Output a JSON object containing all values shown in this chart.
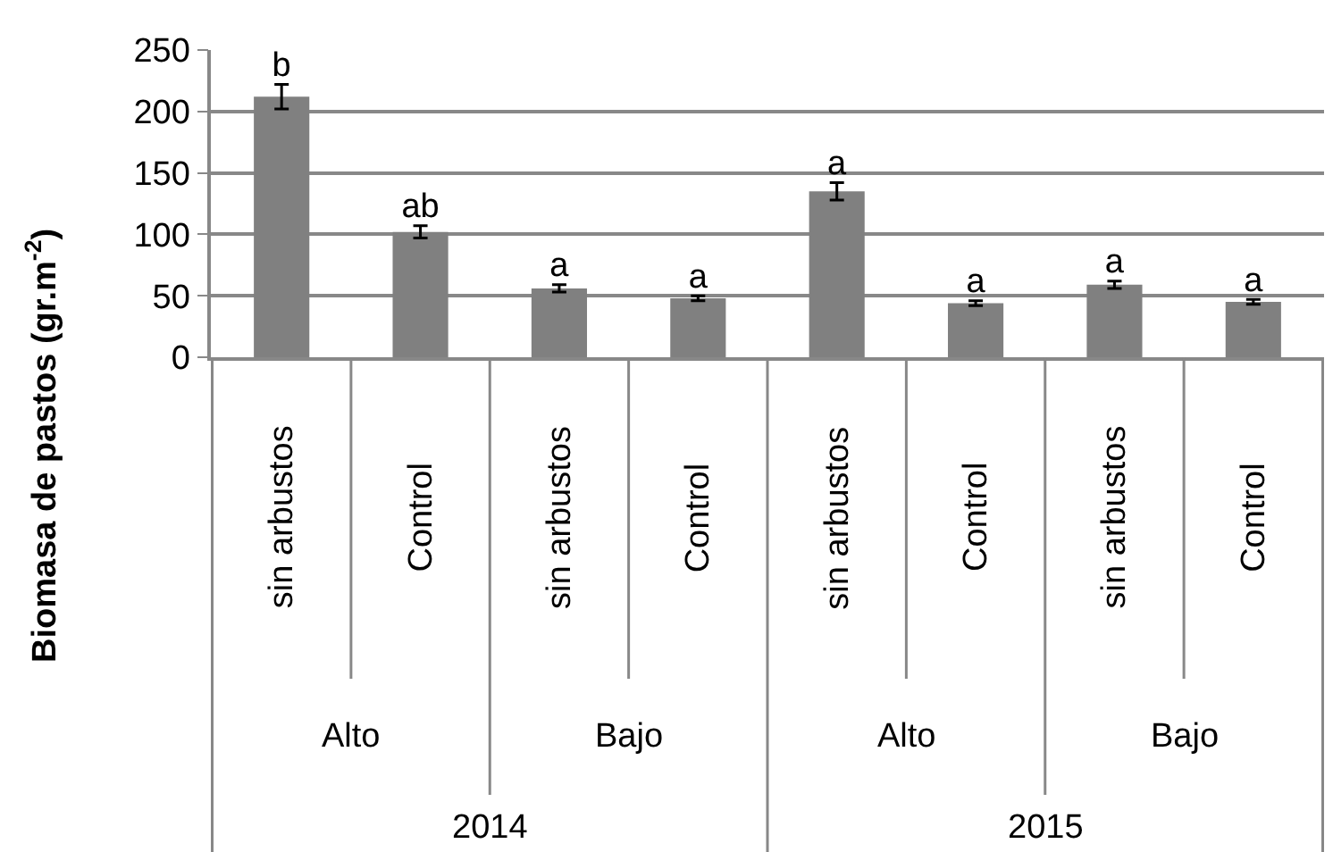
{
  "chart_data": {
    "type": "bar",
    "ylabel": "Biomasa de pastos (gr.m$^{-2}$)",
    "categories": [
      "sin arbustos",
      "Control",
      "sin arbustos",
      "Control",
      "sin arbustos",
      "Control",
      "sin arbustos",
      "Control"
    ],
    "annotations": [
      "Alto",
      "Bajo",
      "Alto",
      "Bajo",
      "2014",
      "2015"
    ],
    "values": [
      212,
      102,
      56,
      48,
      135,
      44,
      59,
      45
    ],
    "errors": [
      10,
      5,
      3,
      2,
      7,
      2,
      3,
      2
    ],
    "value_labels": [
      "b",
      "ab",
      "a",
      "a",
      "a",
      "a",
      "a",
      "a"
    ],
    "color": "#808080",
    "ylim": [
      0,
      250
    ],
    "yticks": [
      0,
      50,
      100,
      150,
      200,
      250
    ],
    "grid": "y"
  }
}
